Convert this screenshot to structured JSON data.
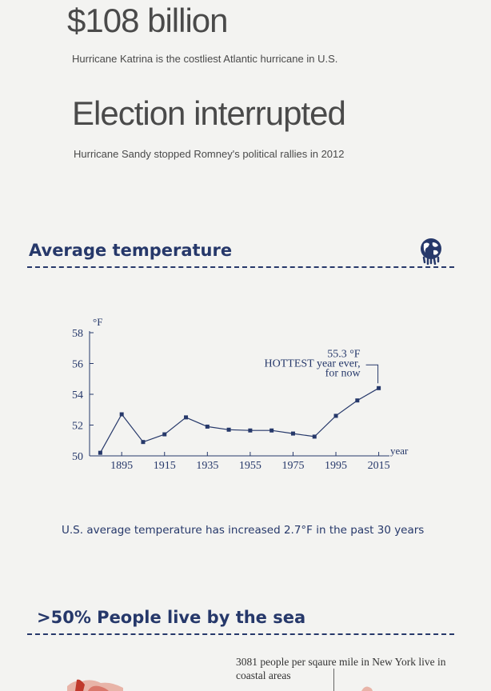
{
  "stats": {
    "cost_value": "$108 billion",
    "cost_caption": "Hurricane Katrina is the costliest Atlantic hurricane in U.S.",
    "election_head": "Election interrupted",
    "election_caption": "Hurricane Sandy stopped Romney's political rallies in 2012"
  },
  "temperature_section": {
    "title": "Average temperature",
    "icon": "globe-icon",
    "note": "U.S. average temperature has increased 2.7°F in the past 30 years"
  },
  "sea_section": {
    "title": ">50% People live by the sea",
    "note": "3081 people per sqaure mile in New York live in coastal areas"
  },
  "colors": {
    "navy": "#26386a",
    "text_gray": "#4a4a4a",
    "map_red": "#c0392b"
  },
  "chart_data": {
    "type": "line",
    "y_unit_label": "°F",
    "x_unit_label": "year",
    "ylim": [
      50,
      58
    ],
    "xlim": [
      1880,
      2020
    ],
    "y_ticks": [
      50,
      52,
      54,
      56,
      58
    ],
    "x_ticks": [
      1895,
      1915,
      1935,
      1955,
      1975,
      1995,
      2015
    ],
    "series": [
      {
        "x": [
          1885,
          1895,
          1905,
          1915,
          1925,
          1935,
          1945,
          1955,
          1965,
          1975,
          1985,
          1995,
          2005,
          2015
        ],
        "y": [
          50.2,
          52.7,
          50.9,
          51.4,
          52.5,
          51.9,
          51.7,
          51.65,
          51.65,
          51.45,
          51.25,
          52.6,
          53.6,
          54.4
        ]
      }
    ],
    "annotation": {
      "value_label": "55.3 °F",
      "line1": "HOTTEST year ever,",
      "line2": "for now",
      "x": 2015,
      "y": 54.4
    }
  }
}
